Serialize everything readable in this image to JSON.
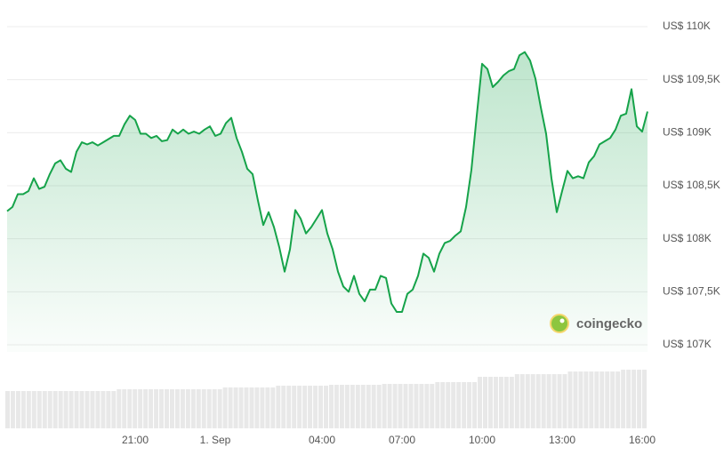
{
  "chart_data": [
    {
      "type": "line",
      "watermark": "coingecko",
      "x": [
        0.2,
        0.4,
        0.6,
        0.8,
        1,
        1.2,
        1.4,
        1.6,
        1.8,
        2,
        2.2,
        2.4,
        2.6,
        2.8,
        3,
        3.2,
        3.4,
        3.6,
        3.8,
        4,
        4.2,
        4.4,
        4.6,
        4.8,
        5,
        5.2,
        5.4,
        5.6,
        5.8,
        6,
        6.2,
        6.4,
        6.6,
        6.8,
        7,
        7.2,
        7.4,
        7.6,
        7.8,
        8,
        8.2,
        8.4,
        8.6,
        8.8,
        9,
        9.2,
        9.4,
        9.6,
        9.8,
        10,
        10.2,
        10.4,
        10.6,
        10.8,
        11,
        11.2,
        11.4,
        11.6,
        11.8,
        12,
        12.2,
        12.4,
        12.6,
        12.8,
        13,
        13.2,
        13.4,
        13.6,
        13.8,
        14,
        14.2,
        14.4,
        14.6,
        14.8,
        15,
        15.2,
        15.4,
        15.6,
        15.8,
        16,
        16.2,
        16.4,
        16.6,
        16.8,
        17,
        17.2,
        17.4,
        17.6,
        17.8,
        18,
        18.2,
        18.4,
        18.6,
        18.8,
        19,
        19.2,
        19.4,
        19.6,
        19.8,
        20,
        20.2,
        20.4,
        20.6,
        20.8,
        21,
        21.2,
        21.4,
        21.6,
        21.8,
        22,
        22.2,
        22.4,
        22.6,
        22.8,
        23,
        23.2,
        23.4,
        23.6,
        23.8,
        24,
        24.2
      ],
      "values": [
        108260,
        108300,
        108420,
        108420,
        108450,
        108570,
        108470,
        108490,
        108610,
        108710,
        108740,
        108660,
        108630,
        108820,
        108910,
        108890,
        108910,
        108880,
        108910,
        108940,
        108970,
        108970,
        109080,
        109160,
        109120,
        108990,
        108990,
        108950,
        108970,
        108920,
        108930,
        109030,
        108990,
        109030,
        108990,
        109010,
        108990,
        109030,
        109060,
        108970,
        108990,
        109090,
        109140,
        108950,
        108820,
        108660,
        108610,
        108360,
        108130,
        108250,
        108110,
        107920,
        107690,
        107900,
        108270,
        108190,
        108050,
        108110,
        108190,
        108270,
        108050,
        107900,
        107690,
        107550,
        107500,
        107650,
        107480,
        107410,
        107520,
        107520,
        107650,
        107630,
        107390,
        107310,
        107310,
        107480,
        107520,
        107650,
        107860,
        107820,
        107690,
        107860,
        107960,
        107980,
        108030,
        108070,
        108300,
        108650,
        109160,
        109650,
        109600,
        109430,
        109480,
        109540,
        109580,
        109600,
        109730,
        109760,
        109680,
        109510,
        109240,
        108990,
        108570,
        108250,
        108450,
        108640,
        108570,
        108590,
        108570,
        108720,
        108780,
        108890,
        108920,
        108950,
        109030,
        109160,
        109180,
        109410,
        109060,
        109010,
        109200
      ],
      "color": "#16a34a",
      "xlim": [
        0,
        24.2
      ],
      "xticks": [
        {
          "value": 5,
          "label": "21:00"
        },
        {
          "value": 8,
          "label": "1. Sep"
        },
        {
          "value": 12,
          "label": "04:00"
        },
        {
          "value": 15,
          "label": "07:00"
        },
        {
          "value": 18,
          "label": "10:00"
        },
        {
          "value": 21,
          "label": "13:00"
        },
        {
          "value": 24,
          "label": "16:00"
        }
      ],
      "ylim": [
        107000,
        110000
      ],
      "yticks": [
        {
          "value": 107000,
          "label": "US$ 107K"
        },
        {
          "value": 107500,
          "label": "US$ 107,5K"
        },
        {
          "value": 108000,
          "label": "US$ 108K"
        },
        {
          "value": 108500,
          "label": "US$ 108,5K"
        },
        {
          "value": 109000,
          "label": "US$ 109K"
        },
        {
          "value": 109500,
          "label": "US$ 109,5K"
        },
        {
          "value": 110000,
          "label": "US$ 110K"
        }
      ],
      "grid": true
    },
    {
      "type": "bar",
      "values": [
        42,
        42,
        42,
        42,
        42,
        42,
        42,
        42,
        42,
        42,
        42,
        42,
        42,
        42,
        42,
        42,
        42,
        42,
        42,
        42,
        42,
        44,
        44,
        44,
        44,
        44,
        44,
        44,
        44,
        44,
        44,
        44,
        44,
        44,
        44,
        44,
        44,
        44,
        44,
        44,
        44,
        46,
        46,
        46,
        46,
        46,
        46,
        46,
        46,
        46,
        46,
        48,
        48,
        48,
        48,
        48,
        48,
        48,
        48,
        48,
        48,
        49,
        49,
        49,
        49,
        49,
        49,
        49,
        49,
        49,
        49,
        50,
        50,
        50,
        50,
        50,
        50,
        50,
        50,
        50,
        50,
        52,
        52,
        52,
        52,
        52,
        52,
        52,
        52,
        58,
        58,
        58,
        58,
        58,
        58,
        58,
        61,
        61,
        61,
        61,
        61,
        61,
        61,
        61,
        61,
        61,
        64,
        64,
        64,
        64,
        64,
        64,
        64,
        64,
        64,
        64,
        66,
        66,
        66,
        66,
        66
      ],
      "color": "#e8e8e8",
      "ylim": [
        0,
        70
      ]
    }
  ]
}
